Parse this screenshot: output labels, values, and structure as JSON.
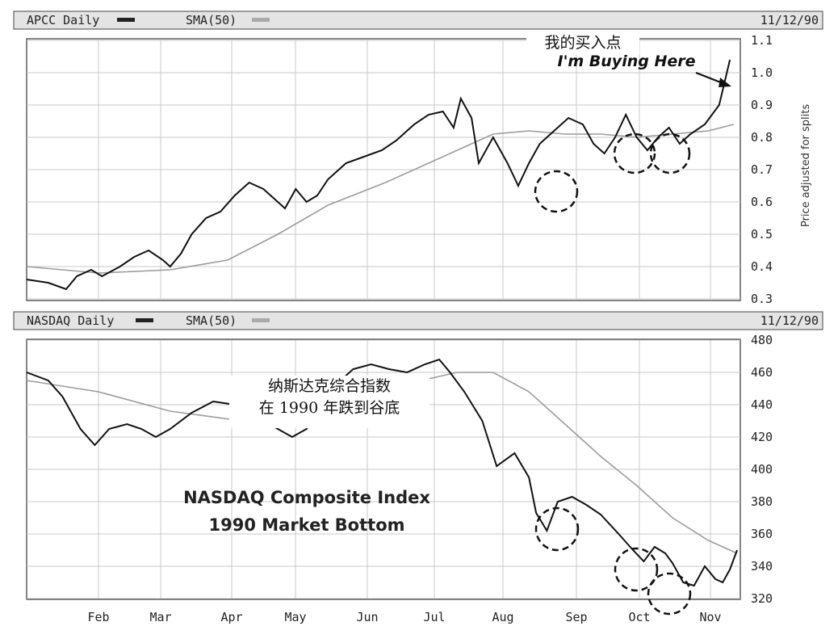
{
  "chart_data": [
    {
      "type": "line",
      "panel": "top",
      "header": {
        "symbol_label": "APCC Daily",
        "sma_label": "SMA(50)",
        "date": "11/12/90"
      },
      "ylabel": "Price adjusted for splits",
      "ylim": [
        0.3,
        1.1
      ],
      "y_ticks": [
        "0.3",
        "0.4",
        "0.5",
        "0.6",
        "0.7",
        "0.8",
        "0.9",
        "1.0",
        "1.1"
      ],
      "x_ticks": [
        "Feb",
        "Mar",
        "Apr",
        "May",
        "Jun",
        "Jul",
        "Aug",
        "Sep",
        "Oct",
        "Nov"
      ],
      "grid": true,
      "annotations": {
        "buy_cn": "我的买入点",
        "buy_en": "I'm Buying Here"
      },
      "series": [
        {
          "name": "APCC Daily",
          "values": [
            [
              0,
              0.36
            ],
            [
              0.3,
              0.35
            ],
            [
              0.55,
              0.33
            ],
            [
              0.7,
              0.37
            ],
            [
              0.9,
              0.39
            ],
            [
              1.05,
              0.37
            ],
            [
              1.3,
              0.4
            ],
            [
              1.5,
              0.43
            ],
            [
              1.7,
              0.45
            ],
            [
              1.9,
              0.42
            ],
            [
              2.0,
              0.4
            ],
            [
              2.15,
              0.44
            ],
            [
              2.3,
              0.5
            ],
            [
              2.5,
              0.55
            ],
            [
              2.7,
              0.57
            ],
            [
              2.9,
              0.62
            ],
            [
              3.1,
              0.66
            ],
            [
              3.3,
              0.64
            ],
            [
              3.45,
              0.61
            ],
            [
              3.6,
              0.58
            ],
            [
              3.75,
              0.64
            ],
            [
              3.9,
              0.6
            ],
            [
              4.05,
              0.62
            ],
            [
              4.2,
              0.67
            ],
            [
              4.45,
              0.72
            ],
            [
              4.7,
              0.74
            ],
            [
              4.95,
              0.76
            ],
            [
              5.15,
              0.79
            ],
            [
              5.4,
              0.84
            ],
            [
              5.6,
              0.87
            ],
            [
              5.8,
              0.88
            ],
            [
              5.95,
              0.83
            ],
            [
              6.05,
              0.92
            ],
            [
              6.2,
              0.86
            ],
            [
              6.3,
              0.72
            ],
            [
              6.5,
              0.8
            ],
            [
              6.7,
              0.72
            ],
            [
              6.85,
              0.65
            ],
            [
              7.0,
              0.72
            ],
            [
              7.15,
              0.78
            ],
            [
              7.35,
              0.82
            ],
            [
              7.55,
              0.86
            ],
            [
              7.75,
              0.84
            ],
            [
              7.9,
              0.78
            ],
            [
              8.05,
              0.75
            ],
            [
              8.2,
              0.8
            ],
            [
              8.35,
              0.87
            ],
            [
              8.5,
              0.8
            ],
            [
              8.65,
              0.76
            ],
            [
              8.8,
              0.8
            ],
            [
              8.95,
              0.83
            ],
            [
              9.1,
              0.78
            ],
            [
              9.25,
              0.81
            ],
            [
              9.45,
              0.84
            ],
            [
              9.65,
              0.9
            ],
            [
              9.8,
              1.04
            ]
          ]
        },
        {
          "name": "SMA(50)",
          "values": [
            [
              0,
              0.4
            ],
            [
              1.0,
              0.38
            ],
            [
              2.0,
              0.39
            ],
            [
              2.8,
              0.42
            ],
            [
              3.5,
              0.5
            ],
            [
              4.2,
              0.59
            ],
            [
              5.0,
              0.66
            ],
            [
              5.8,
              0.74
            ],
            [
              6.2,
              0.78
            ],
            [
              6.5,
              0.81
            ],
            [
              7.0,
              0.82
            ],
            [
              7.5,
              0.81
            ],
            [
              8.0,
              0.81
            ],
            [
              8.5,
              0.8
            ],
            [
              9.0,
              0.81
            ],
            [
              9.5,
              0.82
            ],
            [
              9.85,
              0.84
            ]
          ]
        }
      ]
    },
    {
      "type": "line",
      "panel": "bottom",
      "header": {
        "symbol_label": "NASDAQ Daily",
        "sma_label": "SMA(50)",
        "date": "11/12/90"
      },
      "ylim": [
        320,
        480
      ],
      "y_ticks": [
        "320",
        "340",
        "360",
        "380",
        "400",
        "420",
        "440",
        "460",
        "480"
      ],
      "x_ticks": [
        "Feb",
        "Mar",
        "Apr",
        "May",
        "Jun",
        "Jul",
        "Aug",
        "Sep",
        "Oct",
        "Nov"
      ],
      "grid": true,
      "annotations": {
        "cn_line1": "纳斯达克综合指数",
        "cn_line2": "在 1990 年跌到谷底",
        "title_line1": "NASDAQ Composite Index",
        "title_line2": "1990 Market Bottom"
      },
      "series": [
        {
          "name": "NASDAQ Daily",
          "values": [
            [
              0,
              460
            ],
            [
              0.3,
              455
            ],
            [
              0.5,
              445
            ],
            [
              0.75,
              425
            ],
            [
              0.95,
              415
            ],
            [
              1.15,
              425
            ],
            [
              1.4,
              428
            ],
            [
              1.6,
              425
            ],
            [
              1.8,
              420
            ],
            [
              2.0,
              425
            ],
            [
              2.3,
              435
            ],
            [
              2.6,
              442
            ],
            [
              2.9,
              440
            ],
            [
              3.1,
              436
            ],
            [
              3.3,
              430
            ],
            [
              3.5,
              425
            ],
            [
              3.7,
              420
            ],
            [
              3.9,
              425
            ],
            [
              4.1,
              440
            ],
            [
              4.3,
              452
            ],
            [
              4.55,
              462
            ],
            [
              4.8,
              465
            ],
            [
              5.05,
              462
            ],
            [
              5.3,
              460
            ],
            [
              5.55,
              465
            ],
            [
              5.75,
              468
            ],
            [
              5.9,
              460
            ],
            [
              6.1,
              448
            ],
            [
              6.35,
              430
            ],
            [
              6.55,
              402
            ],
            [
              6.8,
              410
            ],
            [
              7.0,
              395
            ],
            [
              7.1,
              373
            ],
            [
              7.25,
              362
            ],
            [
              7.4,
              380
            ],
            [
              7.6,
              383
            ],
            [
              7.8,
              378
            ],
            [
              8.0,
              372
            ],
            [
              8.25,
              360
            ],
            [
              8.45,
              350
            ],
            [
              8.6,
              343
            ],
            [
              8.75,
              352
            ],
            [
              8.9,
              348
            ],
            [
              9.0,
              342
            ],
            [
              9.15,
              330
            ],
            [
              9.3,
              328
            ],
            [
              9.45,
              340
            ],
            [
              9.6,
              332
            ],
            [
              9.7,
              330
            ],
            [
              9.8,
              338
            ],
            [
              9.9,
              350
            ]
          ]
        },
        {
          "name": "SMA(50)",
          "values": [
            [
              0,
              455
            ],
            [
              1.0,
              448
            ],
            [
              2.0,
              436
            ],
            [
              3.0,
              430
            ],
            [
              4.0,
              435
            ],
            [
              5.0,
              450
            ],
            [
              6.0,
              460
            ],
            [
              6.5,
              460
            ],
            [
              7.0,
              448
            ],
            [
              7.5,
              428
            ],
            [
              8.0,
              408
            ],
            [
              8.5,
              390
            ],
            [
              9.0,
              370
            ],
            [
              9.5,
              356
            ],
            [
              9.9,
              348
            ]
          ]
        }
      ]
    }
  ]
}
